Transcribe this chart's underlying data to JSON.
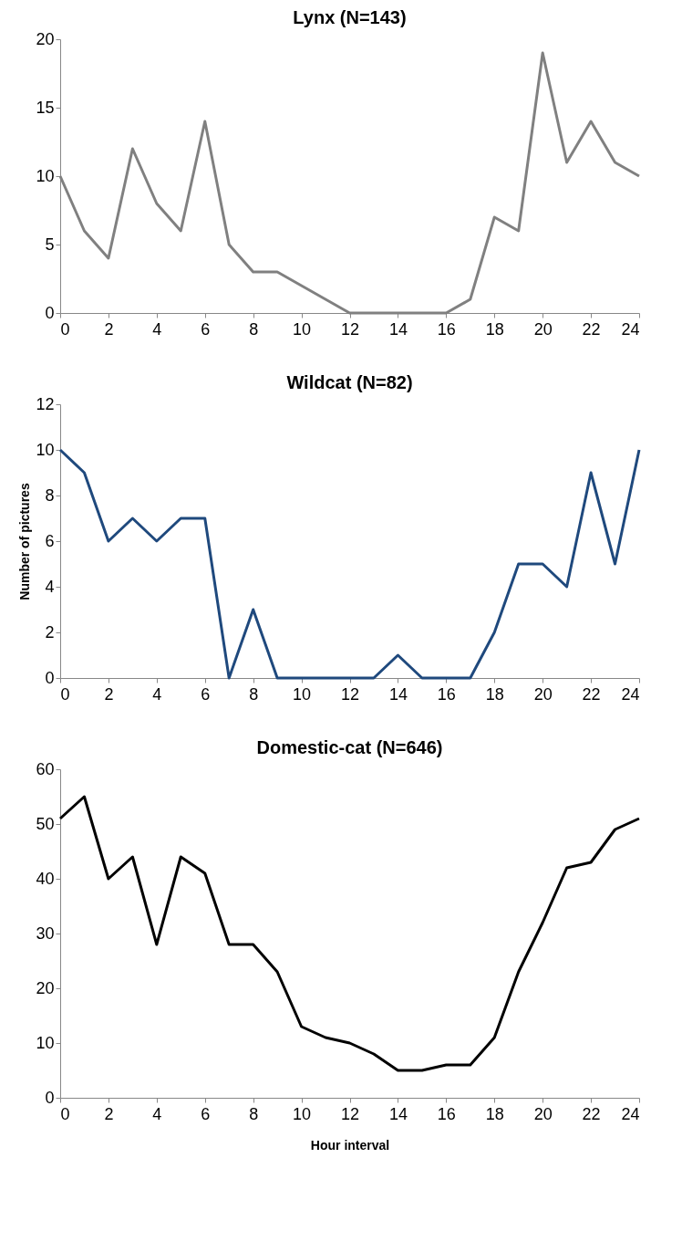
{
  "chart_data": [
    {
      "type": "line",
      "title": "Lynx  (N=143)",
      "x": [
        0,
        1,
        2,
        3,
        4,
        5,
        6,
        7,
        8,
        9,
        10,
        11,
        12,
        13,
        14,
        15,
        16,
        17,
        18,
        19,
        20,
        21,
        22,
        23,
        24
      ],
      "series": [
        {
          "color": "#808080",
          "values": [
            10,
            6,
            4,
            12,
            8,
            6,
            14,
            5,
            3,
            3,
            2,
            1,
            0,
            0,
            0,
            0,
            0,
            1,
            7,
            6,
            19,
            11,
            14,
            11,
            10
          ]
        }
      ],
      "xlim": [
        0,
        24
      ],
      "xticks": [
        0,
        2,
        4,
        6,
        8,
        10,
        12,
        14,
        16,
        18,
        20,
        22,
        24
      ],
      "ylim": [
        0,
        20
      ],
      "yticks": [
        0,
        5,
        10,
        15,
        20
      ]
    },
    {
      "type": "line",
      "title": "Wildcat (N=82)",
      "ylabel": "Number of pictures",
      "x": [
        0,
        1,
        2,
        3,
        4,
        5,
        6,
        7,
        8,
        9,
        10,
        11,
        12,
        13,
        14,
        15,
        16,
        17,
        18,
        19,
        20,
        21,
        22,
        23,
        24
      ],
      "series": [
        {
          "color": "#1f497d",
          "values": [
            10,
            9,
            6,
            7,
            6,
            7,
            7,
            0,
            3,
            0,
            0,
            0,
            0,
            0,
            1,
            0,
            0,
            0,
            2,
            5,
            5,
            4,
            9,
            5,
            10
          ]
        }
      ],
      "xlim": [
        0,
        24
      ],
      "xticks": [
        0,
        2,
        4,
        6,
        8,
        10,
        12,
        14,
        16,
        18,
        20,
        22,
        24
      ],
      "ylim": [
        0,
        12
      ],
      "yticks": [
        0,
        2,
        4,
        6,
        8,
        10,
        12
      ]
    },
    {
      "type": "line",
      "title": "Domestic-cat (N=646)",
      "xlabel": "Hour interval",
      "x": [
        0,
        1,
        2,
        3,
        4,
        5,
        6,
        7,
        8,
        9,
        10,
        11,
        12,
        13,
        14,
        15,
        16,
        17,
        18,
        19,
        20,
        21,
        22,
        23,
        24
      ],
      "series": [
        {
          "color": "#000000",
          "values": [
            51,
            55,
            40,
            44,
            28,
            44,
            41,
            28,
            28,
            23,
            13,
            11,
            10,
            8,
            5,
            5,
            6,
            6,
            11,
            23,
            32,
            42,
            43,
            49,
            51
          ]
        }
      ],
      "xlim": [
        0,
        24
      ],
      "xticks": [
        0,
        2,
        4,
        6,
        8,
        10,
        12,
        14,
        16,
        18,
        20,
        22,
        24
      ],
      "ylim": [
        0,
        60
      ],
      "yticks": [
        0,
        10,
        20,
        30,
        40,
        50,
        60
      ]
    }
  ]
}
